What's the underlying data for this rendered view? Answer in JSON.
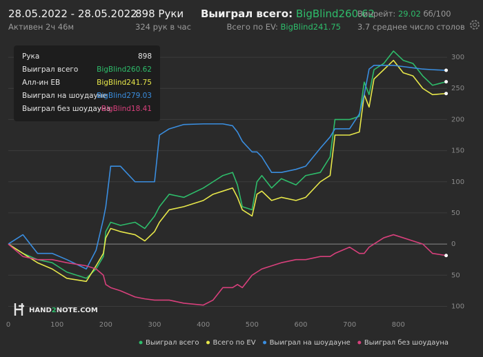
{
  "header": {
    "date_range": "28.05.2022 - 28.05.2022",
    "active": "Активен 2ч 46м",
    "hands": "898 Руки",
    "hands_per_hour": "324 рук в час",
    "won_label": "Выиграл всего:",
    "won_value": "BigBlind260.62",
    "ev_label": "Всего по EV:",
    "ev_value": "BigBlind241.75",
    "winrate_label": "Винрейт:",
    "winrate_value": "29.02",
    "winrate_unit": "бб/100",
    "tables": "3.7 среднее число столов"
  },
  "tooltip": {
    "rows": [
      {
        "label": "Рука",
        "value": "898"
      },
      {
        "label": "Выиграл всего",
        "value": "BigBlind260.62"
      },
      {
        "label": "Алл-ин ЕВ",
        "value": "BigBlind241.75"
      },
      {
        "label": "Выиграл на шоудауне",
        "value": "BigBlind279.03"
      },
      {
        "label": "Выиграл без шоудауна",
        "value": "-BigBlind18.41"
      }
    ]
  },
  "chart_data": {
    "type": "line",
    "watermark": [
      "HAND",
      "2",
      "NOTE.COM"
    ],
    "x": [
      0,
      30,
      60,
      90,
      120,
      160,
      180,
      195,
      200,
      210,
      230,
      260,
      280,
      300,
      310,
      330,
      360,
      400,
      420,
      440,
      460,
      470,
      480,
      500,
      510,
      520,
      540,
      560,
      590,
      610,
      640,
      660,
      670,
      700,
      720,
      730,
      740,
      750,
      770,
      790,
      810,
      830,
      850,
      870,
      898
    ],
    "series": [
      {
        "name": "Выиграл всего",
        "color": "#2ebd6b",
        "values": [
          0,
          -15,
          -25,
          -30,
          -45,
          -55,
          -40,
          -20,
          20,
          35,
          30,
          35,
          25,
          45,
          60,
          80,
          75,
          90,
          100,
          110,
          115,
          95,
          60,
          55,
          100,
          110,
          90,
          105,
          95,
          110,
          115,
          140,
          200,
          200,
          205,
          260,
          240,
          280,
          290,
          310,
          295,
          290,
          270,
          255,
          260.62
        ]
      },
      {
        "name": "Всего по EV",
        "color": "#e8e84a",
        "values": [
          0,
          -15,
          -30,
          -40,
          -55,
          -60,
          -35,
          -15,
          10,
          25,
          20,
          15,
          5,
          20,
          35,
          55,
          60,
          70,
          80,
          85,
          90,
          75,
          55,
          45,
          80,
          85,
          70,
          75,
          70,
          75,
          100,
          110,
          175,
          175,
          180,
          240,
          220,
          265,
          280,
          295,
          275,
          270,
          250,
          240,
          241.75
        ]
      },
      {
        "name": "Выиграл на шоудауне",
        "color": "#3a8ee0",
        "values": [
          0,
          15,
          -15,
          -15,
          -25,
          -40,
          -10,
          40,
          60,
          125,
          125,
          100,
          100,
          100,
          175,
          185,
          192,
          193,
          193,
          193,
          190,
          180,
          165,
          148,
          148,
          140,
          115,
          115,
          120,
          125,
          154,
          172,
          185,
          185,
          209,
          240,
          281,
          287,
          287,
          287,
          285,
          283,
          281,
          280,
          279.03
        ]
      },
      {
        "name": "Выиграл без шоудауна",
        "color": "#d8407c",
        "values": [
          0,
          -20,
          -25,
          -25,
          -30,
          -35,
          -40,
          -50,
          -65,
          -70,
          -75,
          -85,
          -88,
          -90,
          -90,
          -90,
          -95,
          -98,
          -90,
          -70,
          -70,
          -65,
          -70,
          -50,
          -45,
          -40,
          -35,
          -30,
          -25,
          -25,
          -20,
          -20,
          -15,
          -5,
          -15,
          -15,
          -5,
          0,
          10,
          15,
          10,
          5,
          0,
          -15,
          -18.41
        ]
      }
    ],
    "xlim": [
      0,
      900
    ],
    "xticks": [
      0,
      100,
      200,
      300,
      400,
      500,
      600,
      700,
      800
    ],
    "ylim": [
      -115,
      320
    ],
    "yticks": [
      300,
      250,
      200,
      150,
      100,
      50,
      0,
      {
        "value": -50,
        "label": "50"
      },
      {
        "value": -100,
        "label": "100"
      }
    ],
    "grid": true,
    "legend": "bottom-right"
  }
}
